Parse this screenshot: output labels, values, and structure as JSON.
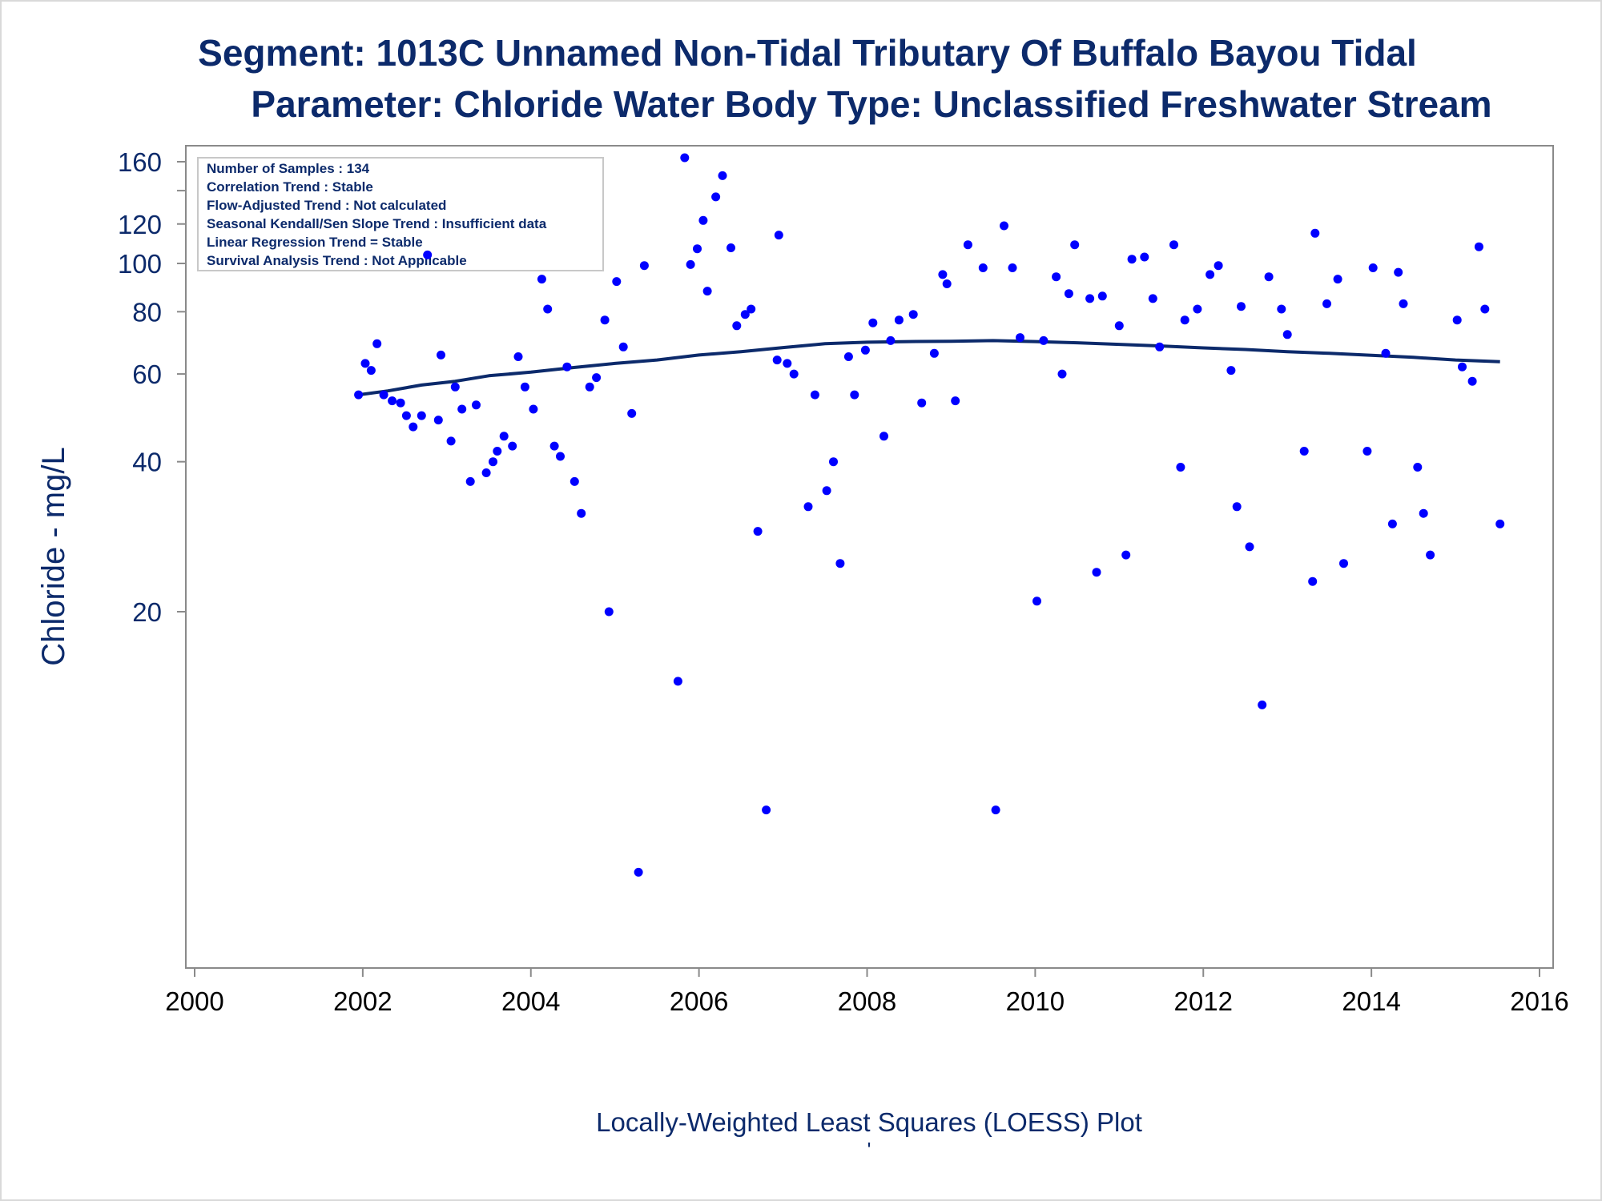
{
  "colors": {
    "title": "#0c2a6b",
    "axis": "#8a8a8a",
    "points": "#0000ff",
    "loess": "#0c2a6b",
    "frame": "#d9d9d9"
  },
  "chart_data": {
    "type": "scatter",
    "title": "Segment: 1013C  Unnamed Non-Tidal Tributary Of Buffalo Bayou Tidal",
    "subtitle": "Parameter: Chloride   Water Body Type: Unclassified Freshwater Stream",
    "xlabel": "Locally-Weighted Least Squares (LOESS) Plot",
    "ylabel": "Chloride - mg/L",
    "footnote": "'",
    "y_scale": "log",
    "xlim": [
      2000,
      2016
    ],
    "ylim": [
      5.9,
      168
    ],
    "x_ticks": [
      "2000",
      "2002",
      "2004",
      "2006",
      "2008",
      "2010",
      "2012",
      "2014",
      "2016"
    ],
    "y_ticks": [
      "20",
      "40",
      "60",
      "80",
      "100",
      "120",
      "160"
    ],
    "y_minor_ticks": [
      140
    ],
    "grid": false,
    "legend": "none",
    "stats_box": {
      "placement": "top-left",
      "lines": [
        "Number of Samples : 134",
        "Correlation Trend : Stable",
        "Flow-Adjusted Trend : Not calculated",
        "Seasonal Kendall/Sen Slope Trend : Insufficient data",
        "Linear Regression Trend = Stable",
        "Survival Analysis Trend : Not Applicable"
      ]
    },
    "series": [
      {
        "name": "",
        "mark": "point",
        "points": [
          [
            2001.95,
            54.5
          ],
          [
            2002.03,
            63.0
          ],
          [
            2002.1,
            61.0
          ],
          [
            2002.17,
            69.0
          ],
          [
            2002.25,
            54.5
          ],
          [
            2002.35,
            53.0
          ],
          [
            2002.45,
            52.5
          ],
          [
            2002.52,
            49.5
          ],
          [
            2002.6,
            47.0
          ],
          [
            2002.7,
            49.5
          ],
          [
            2002.77,
            104.0
          ],
          [
            2002.9,
            48.5
          ],
          [
            2002.93,
            65.5
          ],
          [
            2003.05,
            44.0
          ],
          [
            2003.1,
            56.5
          ],
          [
            2003.18,
            51.0
          ],
          [
            2003.28,
            36.5
          ],
          [
            2003.35,
            52.0
          ],
          [
            2003.47,
            38.0
          ],
          [
            2003.55,
            40.0
          ],
          [
            2003.6,
            42.0
          ],
          [
            2003.68,
            45.0
          ],
          [
            2003.78,
            43.0
          ],
          [
            2003.85,
            65.0
          ],
          [
            2003.93,
            56.5
          ],
          [
            2004.03,
            51.0
          ],
          [
            2004.13,
            93.0
          ],
          [
            2004.2,
            81.0
          ],
          [
            2004.28,
            43.0
          ],
          [
            2004.35,
            41.0
          ],
          [
            2004.43,
            62.0
          ],
          [
            2004.52,
            36.5
          ],
          [
            2004.6,
            31.5
          ],
          [
            2004.7,
            56.5
          ],
          [
            2004.78,
            59.0
          ],
          [
            2004.88,
            77.0
          ],
          [
            2004.93,
            20.0
          ],
          [
            2005.02,
            92.0
          ],
          [
            2005.1,
            68.0
          ],
          [
            2005.2,
            50.0
          ],
          [
            2005.28,
            6.0
          ],
          [
            2005.35,
            99.0
          ],
          [
            2005.75,
            14.5
          ],
          [
            2005.83,
            163.0
          ],
          [
            2005.9,
            99.5
          ],
          [
            2005.98,
            107.0
          ],
          [
            2006.05,
            122.0
          ],
          [
            2006.1,
            88.0
          ],
          [
            2006.2,
            136.0
          ],
          [
            2006.28,
            150.0
          ],
          [
            2006.38,
            107.5
          ],
          [
            2006.45,
            75.0
          ],
          [
            2006.55,
            79.0
          ],
          [
            2006.62,
            81.0
          ],
          [
            2006.7,
            29.0
          ],
          [
            2006.8,
            8.0
          ],
          [
            2006.93,
            64.0
          ],
          [
            2006.95,
            114.0
          ],
          [
            2007.05,
            63.0
          ],
          [
            2007.13,
            60.0
          ],
          [
            2007.3,
            32.5
          ],
          [
            2007.38,
            54.5
          ],
          [
            2007.52,
            35.0
          ],
          [
            2007.6,
            40.0
          ],
          [
            2007.68,
            25.0
          ],
          [
            2007.78,
            65.0
          ],
          [
            2007.85,
            54.5
          ],
          [
            2007.98,
            67.0
          ],
          [
            2008.07,
            76.0
          ],
          [
            2008.2,
            45.0
          ],
          [
            2008.28,
            70.0
          ],
          [
            2008.38,
            77.0
          ],
          [
            2008.55,
            79.0
          ],
          [
            2008.65,
            52.5
          ],
          [
            2008.8,
            66.0
          ],
          [
            2008.9,
            95.0
          ],
          [
            2008.95,
            91.0
          ],
          [
            2009.05,
            53.0
          ],
          [
            2009.2,
            109.0
          ],
          [
            2009.38,
            98.0
          ],
          [
            2009.53,
            8.0
          ],
          [
            2009.63,
            119.0
          ],
          [
            2009.73,
            98.0
          ],
          [
            2009.82,
            71.0
          ],
          [
            2010.02,
            21.0
          ],
          [
            2010.1,
            70.0
          ],
          [
            2010.25,
            94.0
          ],
          [
            2010.32,
            60.0
          ],
          [
            2010.4,
            87.0
          ],
          [
            2010.47,
            109.0
          ],
          [
            2010.65,
            85.0
          ],
          [
            2010.73,
            24.0
          ],
          [
            2010.8,
            86.0
          ],
          [
            2011.0,
            75.0
          ],
          [
            2011.08,
            26.0
          ],
          [
            2011.15,
            102.0
          ],
          [
            2011.3,
            103.0
          ],
          [
            2011.4,
            85.0
          ],
          [
            2011.48,
            68.0
          ],
          [
            2011.65,
            109.0
          ],
          [
            2011.73,
            39.0
          ],
          [
            2011.78,
            77.0
          ],
          [
            2011.93,
            81.0
          ],
          [
            2012.08,
            95.0
          ],
          [
            2012.18,
            99.0
          ],
          [
            2012.33,
            61.0
          ],
          [
            2012.4,
            32.5
          ],
          [
            2012.45,
            82.0
          ],
          [
            2012.55,
            27.0
          ],
          [
            2012.7,
            13.0
          ],
          [
            2012.78,
            94.0
          ],
          [
            2012.93,
            81.0
          ],
          [
            2013.0,
            72.0
          ],
          [
            2013.2,
            42.0
          ],
          [
            2013.3,
            23.0
          ],
          [
            2013.33,
            115.0
          ],
          [
            2013.47,
            83.0
          ],
          [
            2013.6,
            93.0
          ],
          [
            2013.67,
            25.0
          ],
          [
            2013.95,
            42.0
          ],
          [
            2014.02,
            98.0
          ],
          [
            2014.17,
            66.0
          ],
          [
            2014.25,
            30.0
          ],
          [
            2014.32,
            96.0
          ],
          [
            2014.38,
            83.0
          ],
          [
            2014.55,
            39.0
          ],
          [
            2014.62,
            31.5
          ],
          [
            2014.7,
            26.0
          ],
          [
            2015.02,
            77.0
          ],
          [
            2015.08,
            62.0
          ],
          [
            2015.2,
            58.0
          ],
          [
            2015.28,
            108.0
          ],
          [
            2015.35,
            81.0
          ],
          [
            2015.53,
            30.0
          ]
        ]
      },
      {
        "name": "",
        "mark": "line",
        "points": [
          [
            2001.95,
            54.5
          ],
          [
            2002.3,
            55.5
          ],
          [
            2002.7,
            57.0
          ],
          [
            2003.1,
            58.0
          ],
          [
            2003.5,
            59.5
          ],
          [
            2004.0,
            60.5
          ],
          [
            2004.5,
            61.8
          ],
          [
            2005.0,
            63.0
          ],
          [
            2005.5,
            64.0
          ],
          [
            2006.0,
            65.5
          ],
          [
            2006.5,
            66.5
          ],
          [
            2007.0,
            67.8
          ],
          [
            2007.5,
            69.0
          ],
          [
            2008.0,
            69.5
          ],
          [
            2008.5,
            69.7
          ],
          [
            2009.0,
            69.8
          ],
          [
            2009.5,
            70.0
          ],
          [
            2010.0,
            69.7
          ],
          [
            2010.5,
            69.3
          ],
          [
            2011.0,
            68.8
          ],
          [
            2011.5,
            68.3
          ],
          [
            2012.0,
            67.7
          ],
          [
            2012.5,
            67.2
          ],
          [
            2013.0,
            66.5
          ],
          [
            2013.5,
            66.0
          ],
          [
            2014.0,
            65.4
          ],
          [
            2014.5,
            64.8
          ],
          [
            2015.0,
            64.0
          ],
          [
            2015.53,
            63.5
          ]
        ]
      }
    ]
  }
}
